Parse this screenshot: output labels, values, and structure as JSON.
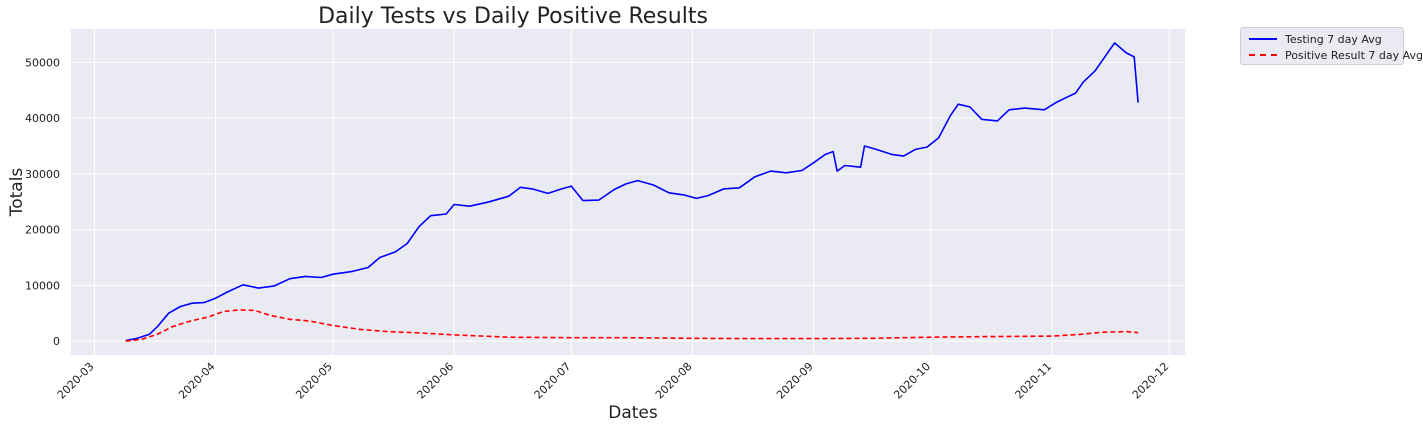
{
  "chart_data": {
    "type": "line",
    "title": "Daily Tests vs Daily Positive Results",
    "xlabel": "Dates",
    "ylabel": "Totals",
    "x_ticks": [
      "2020-03",
      "2020-04",
      "2020-05",
      "2020-06",
      "2020-07",
      "2020-08",
      "2020-09",
      "2020-10",
      "2020-11",
      "2020-12"
    ],
    "y_ticks": [
      0,
      10000,
      20000,
      30000,
      40000,
      50000
    ],
    "xlim": [
      "2020-02-24",
      "2020-12-05"
    ],
    "ylim": [
      -2500,
      56000
    ],
    "grid": true,
    "legend_position": "outside-top-right",
    "background_color": "#eaeaf2",
    "series": [
      {
        "name": "Testing 7 day Avg",
        "color": "#0000ff",
        "style": "solid",
        "points": [
          [
            "2020-03-09",
            100
          ],
          [
            "2020-03-12",
            500
          ],
          [
            "2020-03-15",
            1200
          ],
          [
            "2020-03-17",
            2500
          ],
          [
            "2020-03-20",
            5000
          ],
          [
            "2020-03-23",
            6200
          ],
          [
            "2020-03-26",
            6800
          ],
          [
            "2020-03-29",
            6900
          ],
          [
            "2020-04-01",
            7700
          ],
          [
            "2020-04-04",
            8800
          ],
          [
            "2020-04-08",
            10100
          ],
          [
            "2020-04-12",
            9500
          ],
          [
            "2020-04-16",
            9900
          ],
          [
            "2020-04-20",
            11200
          ],
          [
            "2020-04-24",
            11600
          ],
          [
            "2020-04-28",
            11400
          ],
          [
            "2020-05-01",
            12000
          ],
          [
            "2020-05-06",
            12500
          ],
          [
            "2020-05-10",
            13200
          ],
          [
            "2020-05-13",
            15000
          ],
          [
            "2020-05-17",
            16000
          ],
          [
            "2020-05-20",
            17500
          ],
          [
            "2020-05-23",
            20500
          ],
          [
            "2020-05-26",
            22500
          ],
          [
            "2020-05-30",
            22800
          ],
          [
            "2020-06-01",
            24500
          ],
          [
            "2020-06-05",
            24200
          ],
          [
            "2020-06-10",
            25000
          ],
          [
            "2020-06-15",
            26000
          ],
          [
            "2020-06-18",
            27600
          ],
          [
            "2020-06-21",
            27300
          ],
          [
            "2020-06-25",
            26500
          ],
          [
            "2020-06-28",
            27200
          ],
          [
            "2020-07-01",
            27800
          ],
          [
            "2020-07-04",
            25200
          ],
          [
            "2020-07-08",
            25300
          ],
          [
            "2020-07-12",
            27200
          ],
          [
            "2020-07-15",
            28200
          ],
          [
            "2020-07-18",
            28800
          ],
          [
            "2020-07-22",
            28000
          ],
          [
            "2020-07-26",
            26600
          ],
          [
            "2020-07-30",
            26200
          ],
          [
            "2020-08-02",
            25600
          ],
          [
            "2020-08-05",
            26100
          ],
          [
            "2020-08-09",
            27300
          ],
          [
            "2020-08-13",
            27500
          ],
          [
            "2020-08-17",
            29500
          ],
          [
            "2020-08-21",
            30500
          ],
          [
            "2020-08-25",
            30200
          ],
          [
            "2020-08-29",
            30600
          ],
          [
            "2020-09-01",
            32000
          ],
          [
            "2020-09-04",
            33500
          ],
          [
            "2020-09-06",
            34000
          ],
          [
            "2020-09-07",
            30500
          ],
          [
            "2020-09-09",
            31500
          ],
          [
            "2020-09-13",
            31200
          ],
          [
            "2020-09-14",
            35000
          ],
          [
            "2020-09-17",
            34400
          ],
          [
            "2020-09-21",
            33500
          ],
          [
            "2020-09-24",
            33200
          ],
          [
            "2020-09-27",
            34400
          ],
          [
            "2020-09-30",
            34800
          ],
          [
            "2020-10-03",
            36500
          ],
          [
            "2020-10-06",
            40500
          ],
          [
            "2020-10-08",
            42500
          ],
          [
            "2020-10-11",
            42000
          ],
          [
            "2020-10-14",
            39800
          ],
          [
            "2020-10-18",
            39500
          ],
          [
            "2020-10-21",
            41500
          ],
          [
            "2020-10-25",
            41800
          ],
          [
            "2020-10-30",
            41500
          ],
          [
            "2020-11-02",
            42800
          ],
          [
            "2020-11-04",
            43500
          ],
          [
            "2020-11-07",
            44500
          ],
          [
            "2020-11-09",
            46500
          ],
          [
            "2020-11-12",
            48500
          ],
          [
            "2020-11-15",
            51500
          ],
          [
            "2020-11-17",
            53500
          ],
          [
            "2020-11-20",
            51700
          ],
          [
            "2020-11-22",
            51000
          ],
          [
            "2020-11-23",
            42800
          ]
        ]
      },
      {
        "name": "Positive Result 7 day Avg",
        "color": "#ff0000",
        "style": "dashed",
        "points": [
          [
            "2020-03-09",
            0
          ],
          [
            "2020-03-13",
            300
          ],
          [
            "2020-03-17",
            1200
          ],
          [
            "2020-03-21",
            2600
          ],
          [
            "2020-03-25",
            3500
          ],
          [
            "2020-03-30",
            4300
          ],
          [
            "2020-04-03",
            5300
          ],
          [
            "2020-04-07",
            5600
          ],
          [
            "2020-04-11",
            5500
          ],
          [
            "2020-04-15",
            4600
          ],
          [
            "2020-04-20",
            3900
          ],
          [
            "2020-04-25",
            3600
          ],
          [
            "2020-05-01",
            2800
          ],
          [
            "2020-05-08",
            2100
          ],
          [
            "2020-05-15",
            1700
          ],
          [
            "2020-05-22",
            1500
          ],
          [
            "2020-06-01",
            1100
          ],
          [
            "2020-06-15",
            700
          ],
          [
            "2020-07-01",
            600
          ],
          [
            "2020-07-15",
            600
          ],
          [
            "2020-08-01",
            500
          ],
          [
            "2020-08-15",
            450
          ],
          [
            "2020-09-01",
            450
          ],
          [
            "2020-09-15",
            500
          ],
          [
            "2020-10-01",
            700
          ],
          [
            "2020-10-15",
            800
          ],
          [
            "2020-11-01",
            900
          ],
          [
            "2020-11-08",
            1200
          ],
          [
            "2020-11-14",
            1600
          ],
          [
            "2020-11-20",
            1700
          ],
          [
            "2020-11-23",
            1500
          ]
        ]
      }
    ]
  }
}
